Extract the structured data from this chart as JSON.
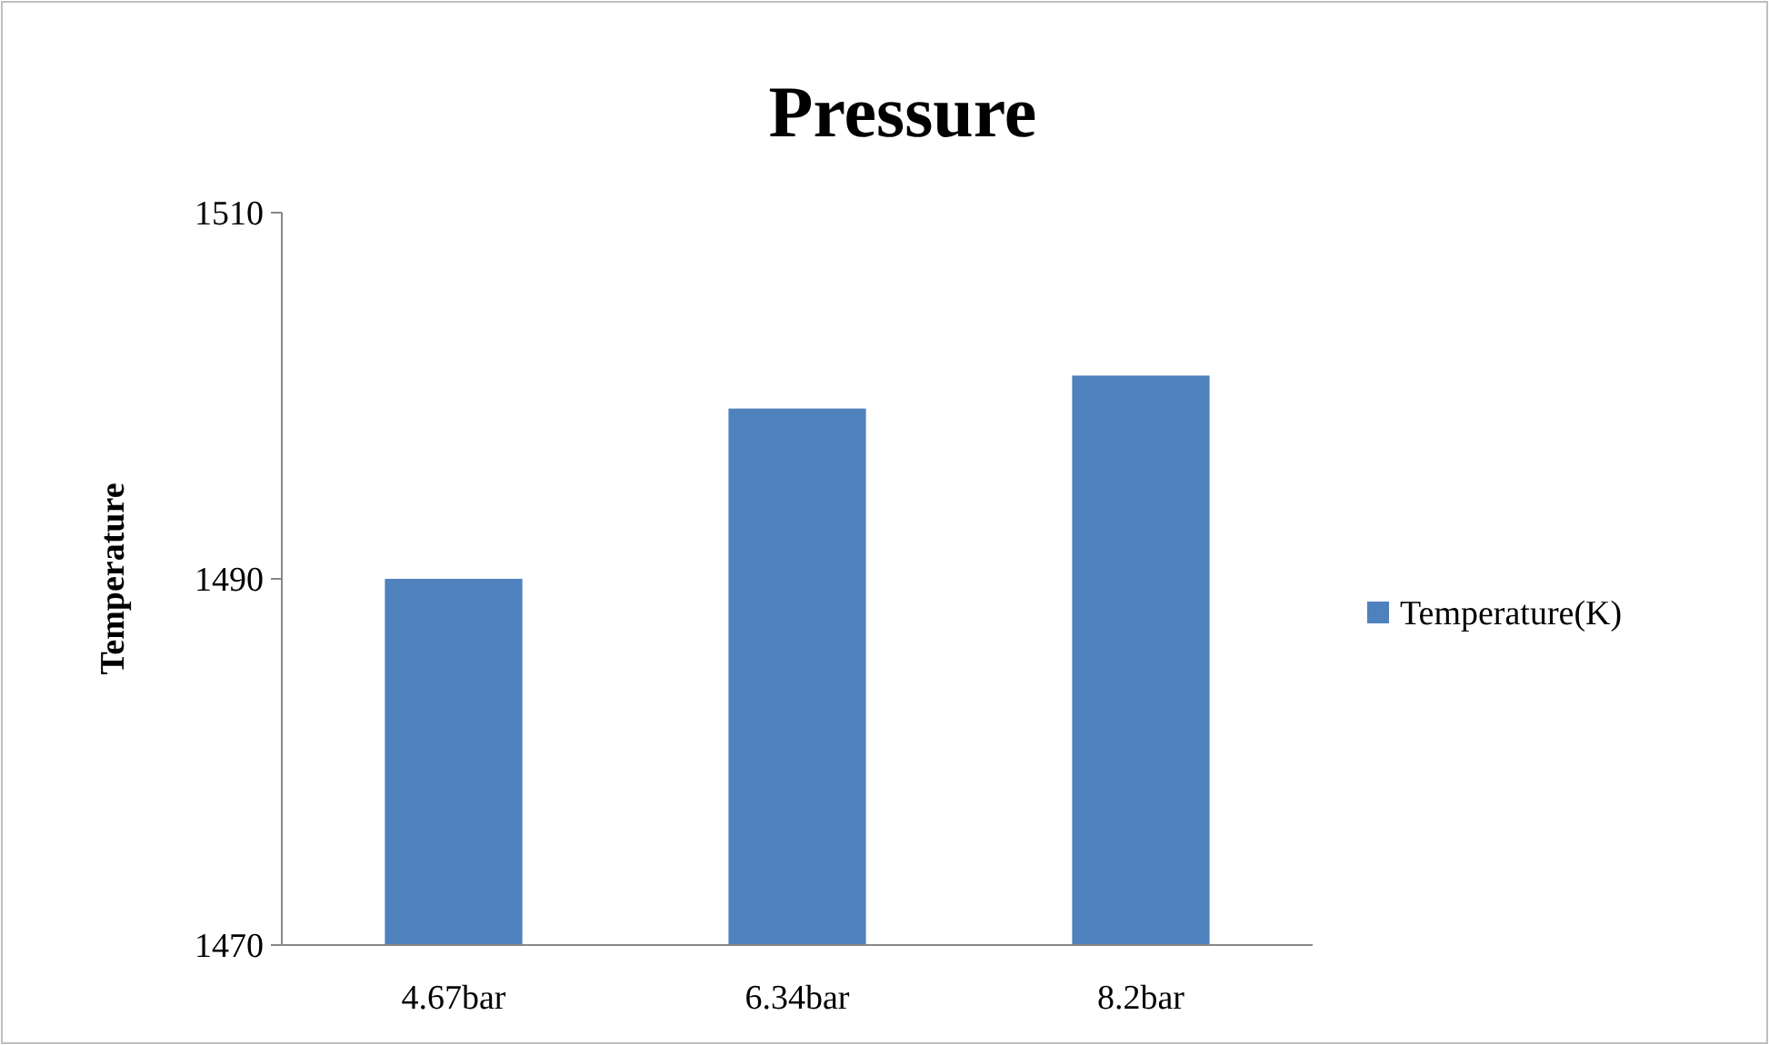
{
  "chart_data": {
    "type": "bar",
    "title": "Pressure",
    "ylabel": "Temperature",
    "categories": [
      "4.67bar",
      "6.34bar",
      "8.2bar"
    ],
    "series": [
      {
        "name": "Temperature(K)",
        "color": "#4f81bd",
        "values": [
          1490,
          1499.3,
          1501.1
        ]
      }
    ],
    "ylim": [
      1470,
      1510
    ],
    "yticks": [
      1470,
      1490,
      1510
    ],
    "grid": false,
    "legend": "right"
  }
}
